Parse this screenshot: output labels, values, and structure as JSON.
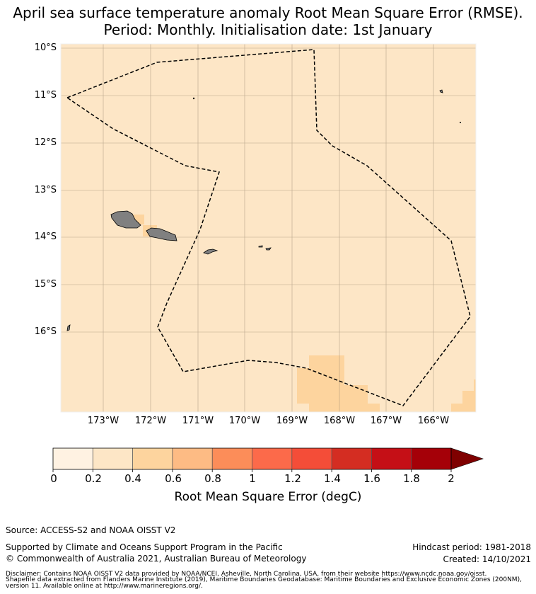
{
  "title": {
    "line1": "April sea surface temperature anomaly Root Mean Square Error (RMSE).",
    "line2": "Period: Monthly. Initialisation date: 1st January"
  },
  "map": {
    "background_color": "#fde6c6",
    "land_color": "#808080",
    "lat_labels": [
      "10°S",
      "11°S",
      "12°S",
      "13°S",
      "14°S",
      "15°S",
      "16°S"
    ],
    "lon_labels": [
      "173°W",
      "172°W",
      "171°W",
      "170°W",
      "169°W",
      "168°W",
      "167°W",
      "166°W"
    ],
    "boundary_line": "maritime-boundary-dashed"
  },
  "colorbar": {
    "ticks": [
      "0",
      "0.2",
      "0.4",
      "0.6",
      "0.8",
      "1",
      "1.2",
      "1.4",
      "1.6",
      "1.8",
      "2"
    ],
    "colors": [
      "#fff2e2",
      "#fde6c6",
      "#fdd49e",
      "#fdbb84",
      "#fc8d59",
      "#fc6a4a",
      "#f44d38",
      "#d42d22",
      "#c50f16",
      "#a50008"
    ],
    "extend_color": "#7f0000",
    "label": "Root Mean Square Error (degC)"
  },
  "footer": {
    "source": "Source: ACCESS-S2 and NOAA OISST V2",
    "supported": "Supported by Climate and Oceans Support Program in the Pacific",
    "copyright": "© Commonwealth of Australia 2021, Australian Bureau of Meteorology",
    "hindcast": "Hindcast period: 1981-2018",
    "created": "Created: 14/10/2021",
    "disclaimer1": "Disclaimer: Contains NOAA OISST V2 data provided by NOAA/NCEI, Asheville, North Carolina, USA, from their website https://www.ncdc.noaa.gov/oisst.",
    "disclaimer2": "Shapefile data extracted from Flanders Marine Institute (2019), Maritime Boundaries Geodatabase: Maritime Boundaries and Exclusive Economic Zones (200NM),",
    "disclaimer3": "version 11. Available online at http://www.marineregions.org/."
  }
}
